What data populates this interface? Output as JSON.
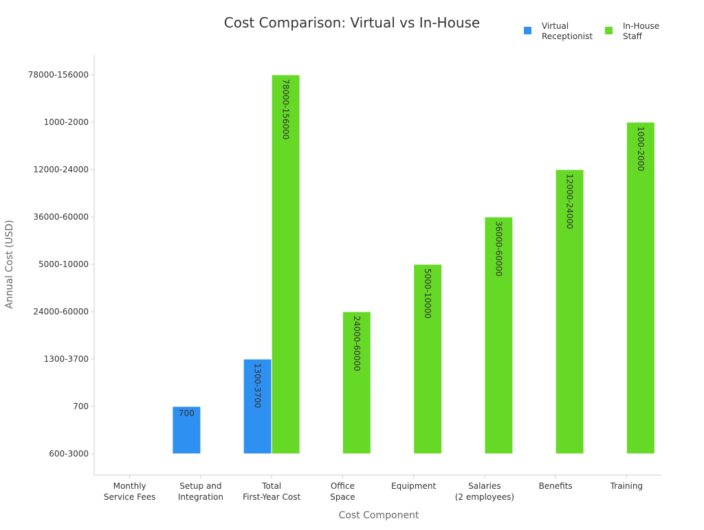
{
  "chart_data": {
    "type": "bar",
    "title": "Cost Comparison: Virtual vs In-House",
    "xlabel": "Cost Component",
    "ylabel": "Annual Cost (USD)",
    "categories": [
      [
        "Monthly",
        "Service Fees"
      ],
      [
        "Setup and",
        "Integration"
      ],
      [
        "Total",
        "First-Year Cost"
      ],
      [
        "Office",
        "Space"
      ],
      [
        "Equipment"
      ],
      [
        "Salaries",
        "(2 employees)"
      ],
      [
        "Benefits"
      ],
      [
        "Training"
      ]
    ],
    "y_axis_kind": "categorical",
    "y_ticks": [
      "600-3000",
      "700",
      "1300-3700",
      "24000-60000",
      "5000-10000",
      "36000-60000",
      "12000-24000",
      "1000-2000",
      "78000-156000"
    ],
    "series": [
      {
        "name": "Virtual Receptionist",
        "color": "#2e90f0",
        "values": [
          null,
          "700",
          "1300-3700",
          null,
          null,
          null,
          null,
          null
        ]
      },
      {
        "name": "In-House Staff",
        "color": "#66d926",
        "values": [
          null,
          null,
          "78000-156000",
          "24000-60000",
          "5000-10000",
          "36000-60000",
          "12000-24000",
          "1000-2000"
        ]
      }
    ],
    "legend": {
      "position": "top-right",
      "entries": [
        [
          "Virtual",
          "Receptionist"
        ],
        [
          "In-House",
          "Staff"
        ]
      ]
    },
    "grid": false,
    "colors": {
      "text": "#333333",
      "axis_label": "#666666",
      "axis_line": "#cccccc"
    }
  }
}
